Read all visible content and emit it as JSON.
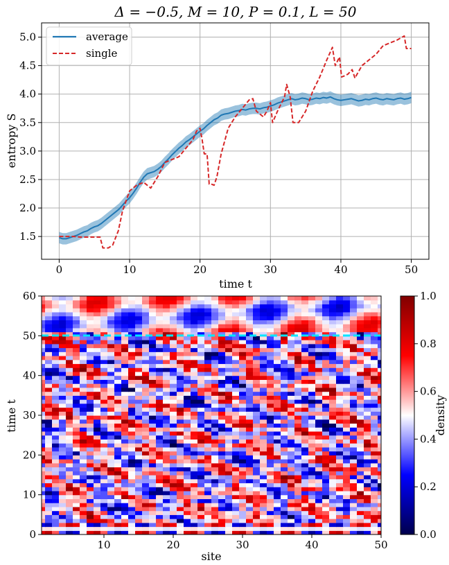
{
  "chart_data": [
    {
      "type": "line",
      "title": "Δ = −0.5, M = 10, P = 0.1, L = 50",
      "xlabel": "time t",
      "ylabel": "entropy S",
      "xlim": [
        -2.5,
        52.5
      ],
      "ylim": [
        1.1,
        5.25
      ],
      "xticks": [
        "0",
        "10",
        "20",
        "30",
        "40",
        "50"
      ],
      "yticks": [
        "1.5",
        "2.0",
        "2.5",
        "3.0",
        "3.5",
        "4.0",
        "4.5",
        "5.0"
      ],
      "grid": true,
      "legend_position": "top-left",
      "series": [
        {
          "name": "average",
          "style": "solid",
          "color": "#1f77b4",
          "band_halfwidth": 0.1,
          "x": [
            0,
            0.5,
            1,
            1.5,
            2,
            2.5,
            3,
            3.5,
            4,
            4.5,
            5,
            5.5,
            6,
            6.5,
            7,
            7.5,
            8,
            8.5,
            9,
            9.5,
            10,
            10.5,
            11,
            11.5,
            12,
            12.5,
            13,
            13.5,
            14,
            14.5,
            15,
            15.5,
            16,
            16.5,
            17,
            17.5,
            18,
            18.5,
            19,
            19.5,
            20,
            20.5,
            21,
            21.5,
            22,
            22.5,
            23,
            23.5,
            24,
            24.5,
            25,
            25.5,
            26,
            26.5,
            27,
            27.5,
            28,
            28.5,
            29,
            29.5,
            30,
            30.5,
            31,
            31.5,
            32,
            32.5,
            33,
            33.5,
            34,
            34.5,
            35,
            35.5,
            36,
            36.5,
            37,
            37.5,
            38,
            38.5,
            39,
            39.5,
            40,
            40.5,
            41,
            41.5,
            42,
            42.5,
            43,
            43.5,
            44,
            44.5,
            45,
            45.5,
            46,
            46.5,
            47,
            47.5,
            48,
            48.5,
            49,
            49.5,
            50
          ],
          "values": [
            1.48,
            1.46,
            1.46,
            1.48,
            1.5,
            1.52,
            1.55,
            1.58,
            1.6,
            1.64,
            1.67,
            1.69,
            1.73,
            1.78,
            1.83,
            1.88,
            1.93,
            1.98,
            2.05,
            2.12,
            2.18,
            2.26,
            2.35,
            2.45,
            2.54,
            2.6,
            2.62,
            2.64,
            2.68,
            2.73,
            2.8,
            2.86,
            2.93,
            2.99,
            3.05,
            3.1,
            3.16,
            3.2,
            3.25,
            3.3,
            3.35,
            3.39,
            3.45,
            3.5,
            3.55,
            3.58,
            3.63,
            3.65,
            3.66,
            3.68,
            3.7,
            3.71,
            3.73,
            3.72,
            3.74,
            3.75,
            3.75,
            3.74,
            3.76,
            3.77,
            3.79,
            3.81,
            3.84,
            3.86,
            3.88,
            3.9,
            3.92,
            3.9,
            3.91,
            3.93,
            3.92,
            3.9,
            3.91,
            3.93,
            3.92,
            3.94,
            3.93,
            3.95,
            3.92,
            3.9,
            3.89,
            3.9,
            3.91,
            3.92,
            3.9,
            3.88,
            3.89,
            3.91,
            3.9,
            3.92,
            3.93,
            3.91,
            3.9,
            3.92,
            3.91,
            3.9,
            3.92,
            3.93,
            3.91,
            3.92,
            3.94
          ]
        },
        {
          "name": "single",
          "style": "dashed",
          "color": "#d62728",
          "x": [
            0,
            2,
            3,
            4,
            5,
            5.8,
            6.2,
            7,
            7.6,
            8.4,
            9,
            10,
            11,
            12,
            13,
            14,
            15,
            16,
            17,
            18,
            19,
            19.5,
            20,
            20.3,
            20.6,
            21,
            21.3,
            21.6,
            22,
            22.4,
            23,
            24,
            25,
            26,
            27,
            27.5,
            28,
            29,
            29.5,
            30,
            30.3,
            31,
            32,
            32.3,
            32.8,
            33.2,
            34,
            35,
            36,
            37,
            38,
            38.8,
            39.2,
            39.8,
            40.1,
            40.5,
            41,
            41.6,
            42,
            42.3,
            43,
            44,
            45,
            46,
            47,
            48,
            49,
            49.3,
            49.6,
            50
          ],
          "values": [
            1.5,
            1.5,
            1.49,
            1.49,
            1.49,
            1.49,
            1.3,
            1.3,
            1.35,
            1.6,
            1.95,
            2.3,
            2.4,
            2.45,
            2.35,
            2.55,
            2.8,
            2.85,
            2.9,
            3.05,
            3.2,
            3.35,
            3.4,
            3.2,
            2.95,
            2.95,
            2.42,
            2.42,
            2.4,
            2.55,
            2.95,
            3.4,
            3.6,
            3.75,
            3.9,
            3.92,
            3.7,
            3.6,
            3.7,
            3.85,
            3.5,
            3.7,
            3.95,
            4.17,
            3.95,
            3.5,
            3.5,
            3.7,
            4.05,
            4.3,
            4.6,
            4.82,
            4.5,
            4.65,
            4.3,
            4.32,
            4.35,
            4.43,
            4.28,
            4.35,
            4.5,
            4.6,
            4.7,
            4.85,
            4.9,
            4.95,
            5.02,
            4.8,
            4.8,
            4.8
          ]
        }
      ]
    },
    {
      "type": "heatmap",
      "xlabel": "site",
      "ylabel": "time t",
      "xlim": [
        1,
        50
      ],
      "ylim": [
        0,
        60
      ],
      "xticks": [
        "10",
        "20",
        "30",
        "40",
        "50"
      ],
      "yticks": [
        "0",
        "10",
        "20",
        "30",
        "40",
        "50",
        "60"
      ],
      "colormap": "seismic",
      "colorbar_label": "density",
      "colorbar_range": [
        0.0,
        1.0
      ],
      "colorbar_ticks": [
        "0.0",
        "0.2",
        "0.4",
        "0.6",
        "0.8",
        "1.0"
      ],
      "annotation": {
        "type": "horizontal-line",
        "y": 50,
        "style": "dashed",
        "color": "#00e5ff"
      }
    }
  ]
}
